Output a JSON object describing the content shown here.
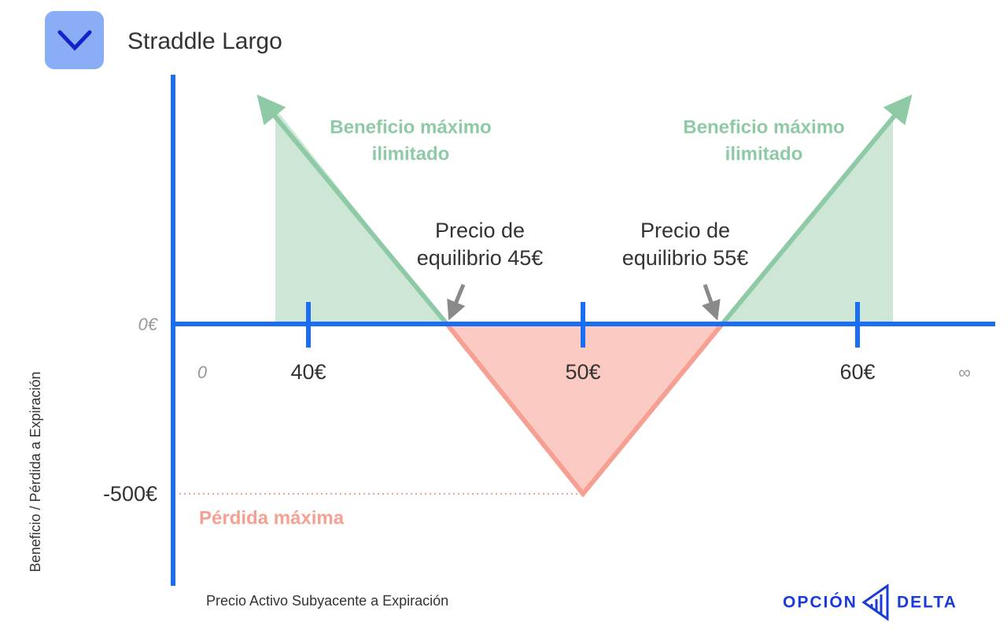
{
  "header": {
    "title": "Straddle Largo"
  },
  "y_axis": {
    "label": "Beneficio / Pérdida a Expiración",
    "zero_label": "0€",
    "min_label": "-500€"
  },
  "x_axis": {
    "label": "Precio Activo Subyacente a Expiración",
    "start_label": "0",
    "end_label": "∞",
    "ticks": [
      "40€",
      "50€",
      "60€"
    ]
  },
  "annotations": {
    "profit_left": [
      "Beneficio máximo",
      "ilimitado"
    ],
    "profit_right": [
      "Beneficio máximo",
      "ilimitado"
    ],
    "breakeven_low": [
      "Precio de",
      "equilibrio 45€"
    ],
    "breakeven_high": [
      "Precio de",
      "equilibrio 55€"
    ],
    "max_loss": "Pérdida máxima"
  },
  "logo": {
    "left": "OPCIÓN",
    "right": "DELTA"
  }
}
